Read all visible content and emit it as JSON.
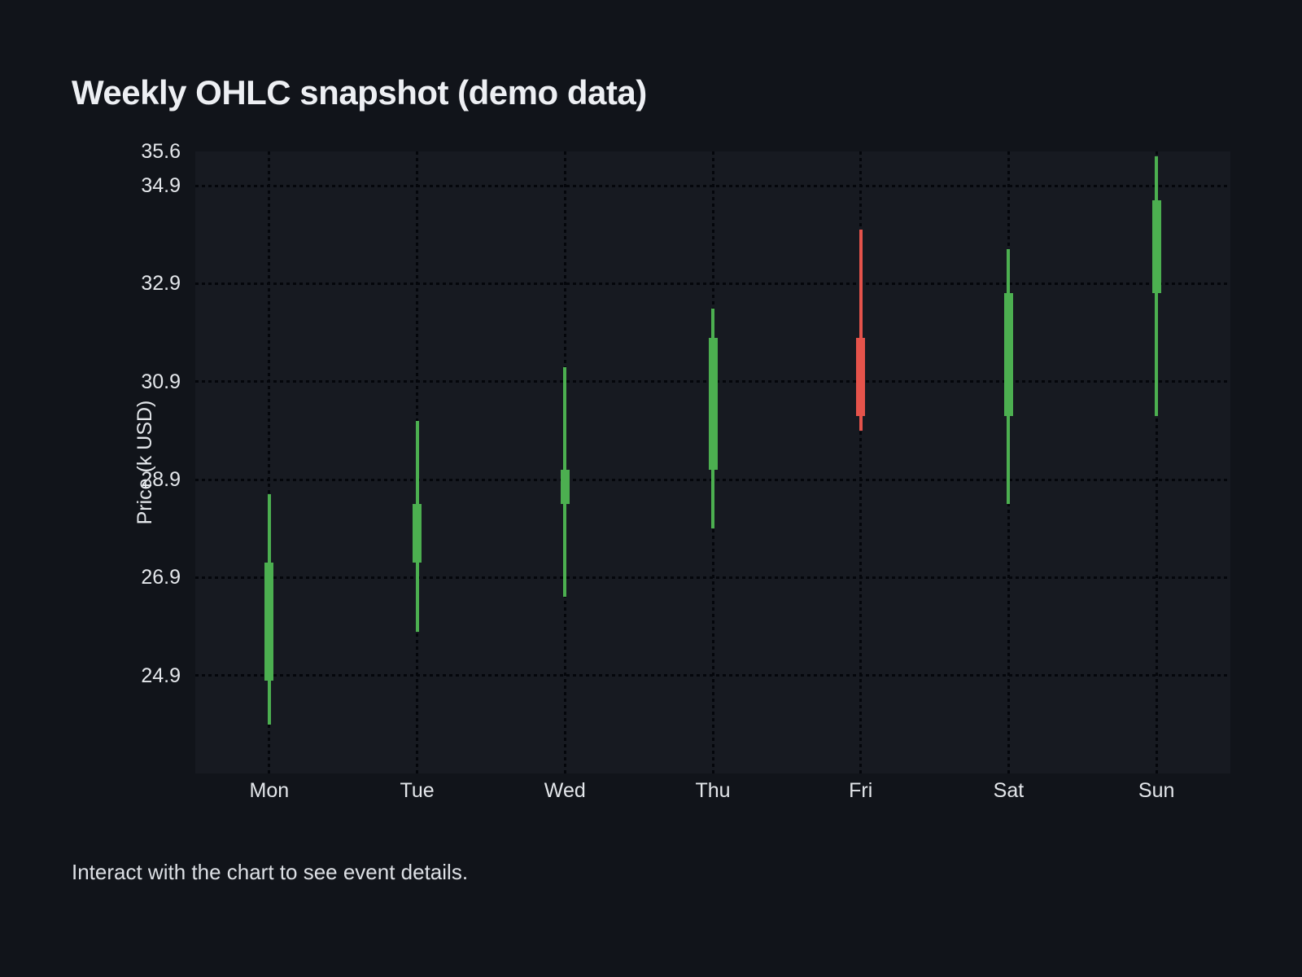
{
  "title": "Weekly OHLC snapshot (demo data)",
  "footer": "Interact with the chart to see event details.",
  "chart_data": {
    "type": "candlestick",
    "title": "Weekly OHLC snapshot (demo data)",
    "xlabel": "",
    "ylabel": "Price (k USD)",
    "categories": [
      "Mon",
      "Tue",
      "Wed",
      "Thu",
      "Fri",
      "Sat",
      "Sun"
    ],
    "series": [
      {
        "name": "OHLC",
        "open": [
          24.8,
          27.2,
          28.4,
          29.1,
          31.8,
          30.2,
          32.7
        ],
        "high": [
          28.6,
          30.1,
          31.2,
          32.4,
          34.0,
          33.6,
          35.5
        ],
        "low": [
          23.9,
          25.8,
          26.5,
          27.9,
          29.9,
          28.4,
          30.2
        ],
        "close": [
          27.2,
          28.4,
          29.1,
          31.8,
          30.2,
          32.7,
          34.6
        ]
      }
    ],
    "ylim": [
      22.9,
      35.6
    ],
    "y_tick_labels": [
      35.6,
      34.9,
      32.9,
      30.9,
      28.9,
      26.9,
      24.9
    ],
    "y_gridlines": [
      34.9,
      32.9,
      30.9,
      28.9,
      26.9,
      24.9
    ],
    "grid": "dotted-black-both-axes",
    "legend": "none",
    "colors": {
      "up": "#4caf50",
      "down": "#e5534b",
      "page_background": "#11141a",
      "plot_background": "#171a21",
      "text": "#e4e7eb",
      "gridline": "#04060b"
    }
  }
}
